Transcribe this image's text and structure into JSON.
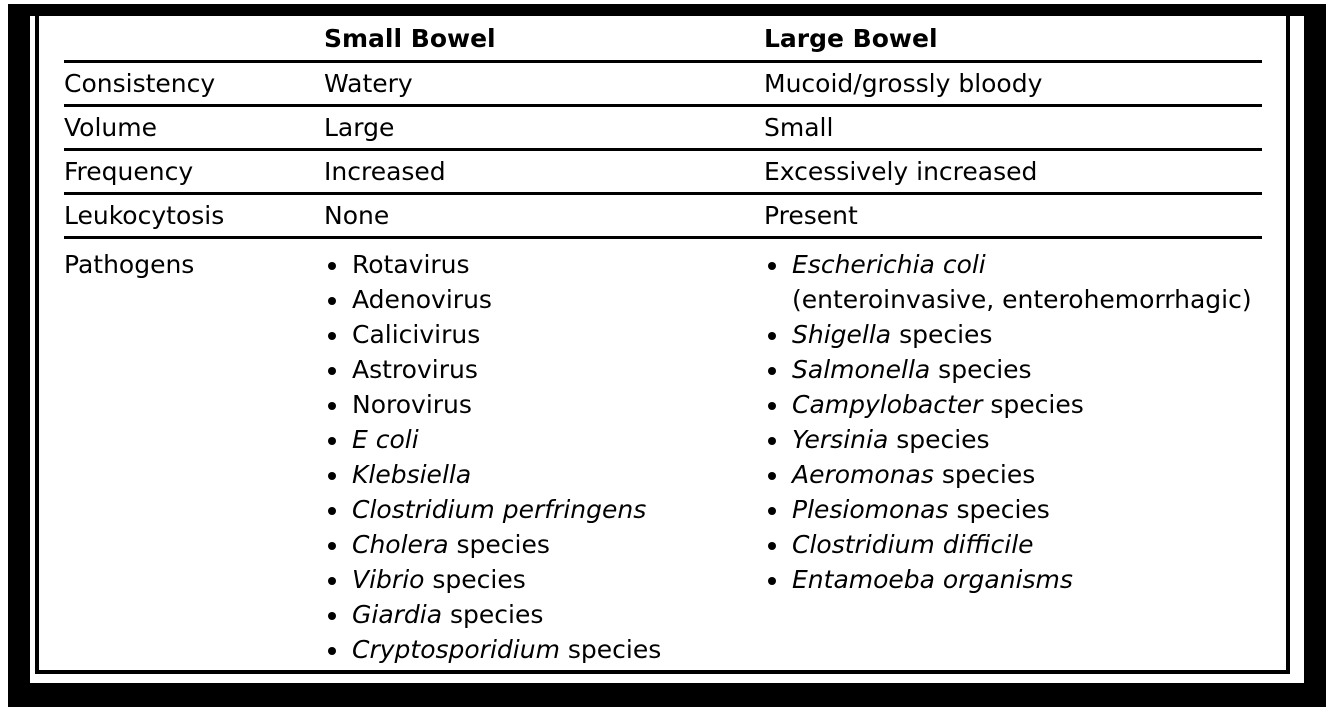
{
  "headers": {
    "col1": "",
    "col2": "Small Bowel",
    "col3": "Large Bowel"
  },
  "rows": [
    {
      "label": "Consistency",
      "small": "Watery",
      "large": "Mucoid/grossly bloody"
    },
    {
      "label": "Volume",
      "small": "Large",
      "large": "Small"
    },
    {
      "label": "Frequency",
      "small": "Increased",
      "large": "Excessively increased"
    },
    {
      "label": "Leukocytosis",
      "small": "None",
      "large": "Present"
    }
  ],
  "pathogens": {
    "label": "Pathogens",
    "small": [
      {
        "italic": "",
        "rest": "Rotavirus"
      },
      {
        "italic": "",
        "rest": "Adenovirus"
      },
      {
        "italic": "",
        "rest": "Calicivirus"
      },
      {
        "italic": "",
        "rest": "Astrovirus"
      },
      {
        "italic": "",
        "rest": "Norovirus"
      },
      {
        "italic": "E coli",
        "rest": ""
      },
      {
        "italic": "Klebsiella",
        "rest": ""
      },
      {
        "italic": "Clostridium perfringens",
        "rest": ""
      },
      {
        "italic": "Cholera",
        "rest": " species"
      },
      {
        "italic": "Vibrio",
        "rest": " species"
      },
      {
        "italic": "Giardia",
        "rest": " species"
      },
      {
        "italic": "Cryptosporidium",
        "rest": " species"
      }
    ],
    "large": [
      {
        "italic": "Escherichia coli",
        "rest": "",
        "continuation": "(enteroinvasive, enterohemorrhagic)"
      },
      {
        "italic": "Shigella",
        "rest": " species"
      },
      {
        "italic": "Salmonella",
        "rest": " species"
      },
      {
        "italic": "Campylobacter",
        "rest": " species"
      },
      {
        "italic": "Yersinia",
        "rest": " species"
      },
      {
        "italic": "Aeromonas",
        "rest": " species"
      },
      {
        "italic": "Plesiomonas",
        "rest": " species"
      },
      {
        "italic": "Clostridium difficile",
        "rest": ""
      },
      {
        "italic": "Entamoeba organisms",
        "rest": ""
      }
    ]
  }
}
